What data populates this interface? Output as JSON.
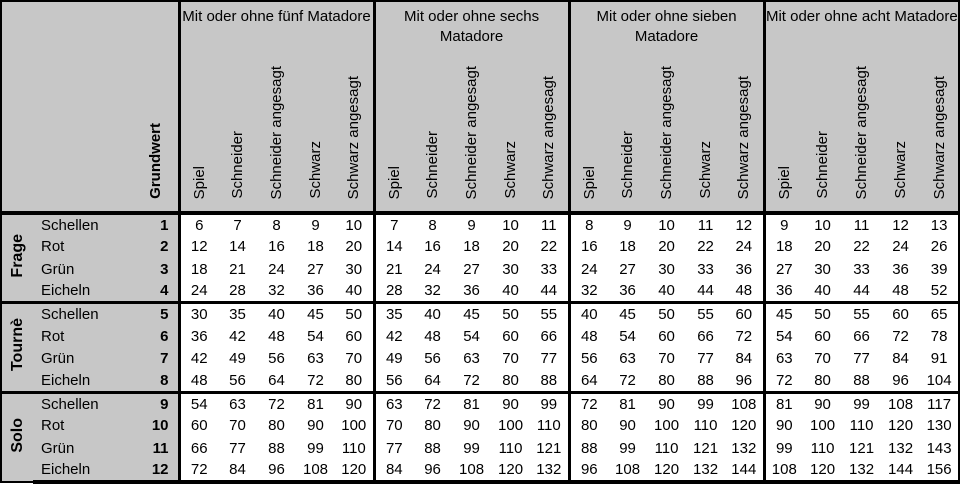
{
  "table": {
    "corner_label": "Grundwert",
    "group_titles": [
      "Mit oder ohne fünf Matadore",
      "Mit oder ohne sechs Matadore",
      "Mit oder ohne sieben Matadore",
      "Mit oder ohne acht Matadore"
    ],
    "value_columns": [
      "Spiel",
      "Schneider",
      "Schneider angesagt",
      "Schwarz",
      "Schwarz angesagt"
    ],
    "sections": [
      {
        "label": "Frage",
        "rows": [
          {
            "suit": "Schellen",
            "grundwert": 1,
            "values": [
              6,
              7,
              8,
              9,
              10,
              7,
              8,
              9,
              10,
              11,
              8,
              9,
              10,
              11,
              12,
              9,
              10,
              11,
              12,
              13
            ]
          },
          {
            "suit": "Rot",
            "grundwert": 2,
            "values": [
              12,
              14,
              16,
              18,
              20,
              14,
              16,
              18,
              20,
              22,
              16,
              18,
              20,
              22,
              24,
              18,
              20,
              22,
              24,
              26
            ]
          },
          {
            "suit": "Grün",
            "grundwert": 3,
            "values": [
              18,
              21,
              24,
              27,
              30,
              21,
              24,
              27,
              30,
              33,
              24,
              27,
              30,
              33,
              36,
              27,
              30,
              33,
              36,
              39
            ]
          },
          {
            "suit": "Eicheln",
            "grundwert": 4,
            "values": [
              24,
              28,
              32,
              36,
              40,
              28,
              32,
              36,
              40,
              44,
              32,
              36,
              40,
              44,
              48,
              36,
              40,
              44,
              48,
              52
            ]
          }
        ]
      },
      {
        "label": "Tournè",
        "rows": [
          {
            "suit": "Schellen",
            "grundwert": 5,
            "values": [
              30,
              35,
              40,
              45,
              50,
              35,
              40,
              45,
              50,
              55,
              40,
              45,
              50,
              55,
              60,
              45,
              50,
              55,
              60,
              65
            ]
          },
          {
            "suit": "Rot",
            "grundwert": 6,
            "values": [
              36,
              42,
              48,
              54,
              60,
              42,
              48,
              54,
              60,
              66,
              48,
              54,
              60,
              66,
              72,
              54,
              60,
              66,
              72,
              78
            ]
          },
          {
            "suit": "Grün",
            "grundwert": 7,
            "values": [
              42,
              49,
              56,
              63,
              70,
              49,
              56,
              63,
              70,
              77,
              56,
              63,
              70,
              77,
              84,
              63,
              70,
              77,
              84,
              91
            ]
          },
          {
            "suit": "Eicheln",
            "grundwert": 8,
            "values": [
              48,
              56,
              64,
              72,
              80,
              56,
              64,
              72,
              80,
              88,
              64,
              72,
              80,
              88,
              96,
              72,
              80,
              88,
              96,
              104
            ]
          }
        ]
      },
      {
        "label": "Solo",
        "rows": [
          {
            "suit": "Schellen",
            "grundwert": 9,
            "values": [
              54,
              63,
              72,
              81,
              90,
              63,
              72,
              81,
              90,
              99,
              72,
              81,
              90,
              99,
              108,
              81,
              90,
              99,
              108,
              117
            ]
          },
          {
            "suit": "Rot",
            "grundwert": 10,
            "values": [
              60,
              70,
              80,
              90,
              100,
              70,
              80,
              90,
              100,
              110,
              80,
              90,
              100,
              110,
              120,
              90,
              100,
              110,
              120,
              130
            ]
          },
          {
            "suit": "Grün",
            "grundwert": 11,
            "values": [
              66,
              77,
              88,
              99,
              110,
              77,
              88,
              99,
              110,
              121,
              88,
              99,
              110,
              121,
              132,
              99,
              110,
              121,
              132,
              143
            ]
          },
          {
            "suit": "Eicheln",
            "grundwert": 12,
            "values": [
              72,
              84,
              96,
              108,
              120,
              84,
              96,
              108,
              120,
              132,
              96,
              108,
              120,
              132,
              144,
              108,
              120,
              132,
              144,
              156
            ]
          }
        ]
      }
    ]
  },
  "colors": {
    "header_bg": "#c7c7c7",
    "body_bg": "#ffffff",
    "border": "#000000",
    "text": "#000000"
  }
}
